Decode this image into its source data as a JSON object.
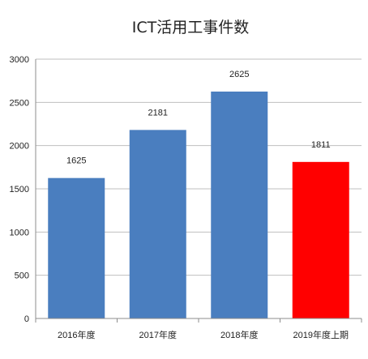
{
  "chart_data": {
    "type": "bar",
    "title": "ICT活用工事件数",
    "categories": [
      "2016年度",
      "2017年度",
      "2018年度",
      "2019年度上期"
    ],
    "values": [
      1625,
      2181,
      2625,
      1811
    ],
    "bar_colors": [
      "#4a7ebf",
      "#4a7ebf",
      "#4a7ebf",
      "#ff0000"
    ],
    "ylim": [
      0,
      3000
    ],
    "yticks": [
      0,
      500,
      1000,
      1500,
      2000,
      2500,
      3000
    ],
    "grid": true,
    "legend": "none"
  }
}
